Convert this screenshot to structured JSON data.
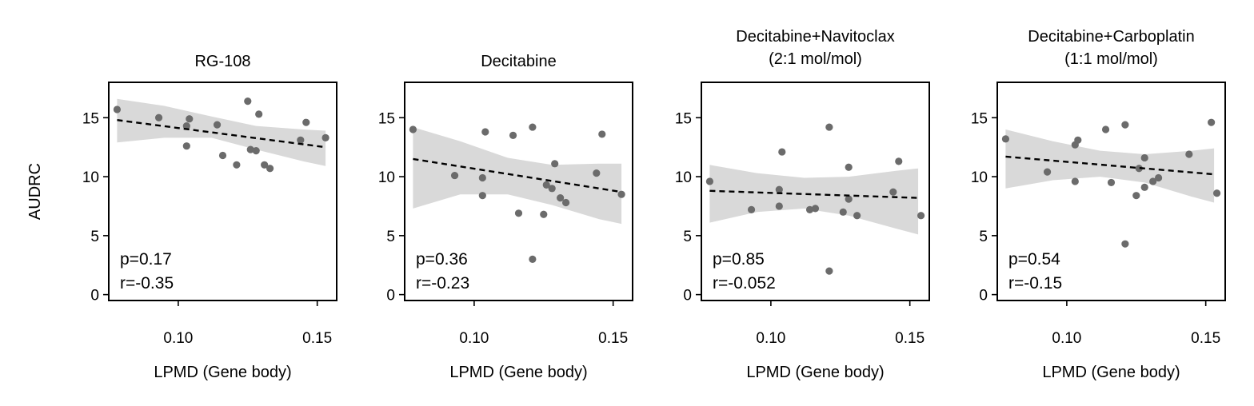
{
  "chart_data": [
    {
      "type": "scatter",
      "title": "RG-108",
      "xlabel": "LPMD (Gene body)",
      "ylabel": "AUDRC",
      "xlim": [
        0.075,
        0.157
      ],
      "ylim": [
        -0.5,
        18
      ],
      "xticks": [
        0.1,
        0.15
      ],
      "xtick_labels": [
        "0.10",
        "0.15"
      ],
      "yticks": [
        0,
        5,
        10,
        15
      ],
      "ytick_labels": [
        "0",
        "5",
        "10",
        "15"
      ],
      "points": [
        {
          "x": 0.078,
          "y": 15.7
        },
        {
          "x": 0.093,
          "y": 15.0
        },
        {
          "x": 0.103,
          "y": 14.3
        },
        {
          "x": 0.104,
          "y": 14.9
        },
        {
          "x": 0.103,
          "y": 12.6
        },
        {
          "x": 0.114,
          "y": 14.4
        },
        {
          "x": 0.116,
          "y": 11.8
        },
        {
          "x": 0.121,
          "y": 11.0
        },
        {
          "x": 0.125,
          "y": 16.4
        },
        {
          "x": 0.126,
          "y": 12.3
        },
        {
          "x": 0.128,
          "y": 12.2
        },
        {
          "x": 0.129,
          "y": 15.3
        },
        {
          "x": 0.131,
          "y": 11.0
        },
        {
          "x": 0.133,
          "y": 10.7
        },
        {
          "x": 0.144,
          "y": 13.1
        },
        {
          "x": 0.146,
          "y": 14.6
        },
        {
          "x": 0.153,
          "y": 13.3
        }
      ],
      "fit": {
        "x": [
          0.078,
          0.153
        ],
        "y": [
          14.8,
          12.5
        ]
      },
      "ci_band": {
        "x": [
          0.078,
          0.095,
          0.112,
          0.128,
          0.145,
          0.153
        ],
        "lower": [
          12.9,
          13.3,
          13.3,
          12.3,
          11.3,
          10.9
        ],
        "upper": [
          16.6,
          16.0,
          15.1,
          14.3,
          14.0,
          13.9
        ]
      },
      "annotation": [
        "p=0.17",
        "r=-0.35"
      ]
    },
    {
      "type": "scatter",
      "title": "Decitabine",
      "xlabel": "LPMD (Gene body)",
      "ylabel": "",
      "xlim": [
        0.075,
        0.157
      ],
      "ylim": [
        -0.5,
        18
      ],
      "xticks": [
        0.1,
        0.15
      ],
      "xtick_labels": [
        "0.10",
        "0.15"
      ],
      "yticks": [
        0,
        5,
        10,
        15
      ],
      "ytick_labels": [
        "0",
        "5",
        "10",
        "15"
      ],
      "points": [
        {
          "x": 0.078,
          "y": 14.0
        },
        {
          "x": 0.093,
          "y": 10.1
        },
        {
          "x": 0.104,
          "y": 13.8
        },
        {
          "x": 0.103,
          "y": 9.9
        },
        {
          "x": 0.103,
          "y": 8.4
        },
        {
          "x": 0.114,
          "y": 13.5
        },
        {
          "x": 0.116,
          "y": 6.9
        },
        {
          "x": 0.121,
          "y": 14.2
        },
        {
          "x": 0.121,
          "y": 3.0
        },
        {
          "x": 0.125,
          "y": 6.8
        },
        {
          "x": 0.126,
          "y": 9.3
        },
        {
          "x": 0.128,
          "y": 9.0
        },
        {
          "x": 0.129,
          "y": 11.1
        },
        {
          "x": 0.131,
          "y": 8.2
        },
        {
          "x": 0.133,
          "y": 7.8
        },
        {
          "x": 0.144,
          "y": 10.3
        },
        {
          "x": 0.146,
          "y": 13.6
        },
        {
          "x": 0.153,
          "y": 8.5
        }
      ],
      "fit": {
        "x": [
          0.078,
          0.153
        ],
        "y": [
          11.5,
          8.7
        ]
      },
      "ci_band": {
        "x": [
          0.078,
          0.095,
          0.112,
          0.128,
          0.145,
          0.153
        ],
        "lower": [
          7.3,
          8.5,
          8.5,
          7.6,
          6.4,
          6.0
        ],
        "upper": [
          14.2,
          13.0,
          11.6,
          11.0,
          11.1,
          11.1
        ]
      },
      "annotation": [
        "p=0.36",
        "r=-0.23"
      ]
    },
    {
      "type": "scatter",
      "title": "Decitabine+Navitoclax\n(2:1 mol/mol)",
      "title_lines": [
        "Decitabine+Navitoclax",
        "(2:1 mol/mol)"
      ],
      "xlabel": "LPMD (Gene body)",
      "ylabel": "",
      "xlim": [
        0.075,
        0.157
      ],
      "ylim": [
        -0.5,
        18
      ],
      "xticks": [
        0.1,
        0.15
      ],
      "xtick_labels": [
        "0.10",
        "0.15"
      ],
      "yticks": [
        0,
        5,
        10,
        15
      ],
      "ytick_labels": [
        "0",
        "5",
        "10",
        "15"
      ],
      "points": [
        {
          "x": 0.078,
          "y": 9.6
        },
        {
          "x": 0.093,
          "y": 7.2
        },
        {
          "x": 0.104,
          "y": 12.1
        },
        {
          "x": 0.103,
          "y": 8.9
        },
        {
          "x": 0.103,
          "y": 7.5
        },
        {
          "x": 0.114,
          "y": 7.2
        },
        {
          "x": 0.116,
          "y": 7.3
        },
        {
          "x": 0.121,
          "y": 14.2
        },
        {
          "x": 0.121,
          "y": 2.0
        },
        {
          "x": 0.126,
          "y": 7.0
        },
        {
          "x": 0.128,
          "y": 8.1
        },
        {
          "x": 0.128,
          "y": 10.8
        },
        {
          "x": 0.131,
          "y": 6.7
        },
        {
          "x": 0.144,
          "y": 8.7
        },
        {
          "x": 0.146,
          "y": 11.3
        },
        {
          "x": 0.154,
          "y": 6.7
        }
      ],
      "fit": {
        "x": [
          0.078,
          0.153
        ],
        "y": [
          8.8,
          8.2
        ]
      },
      "ci_band": {
        "x": [
          0.078,
          0.095,
          0.112,
          0.128,
          0.145,
          0.153
        ],
        "lower": [
          6.1,
          7.0,
          7.3,
          6.7,
          5.6,
          5.1
        ],
        "upper": [
          11.0,
          10.3,
          9.9,
          10.0,
          10.5,
          10.7
        ]
      },
      "annotation": [
        "p=0.85",
        "r=-0.052"
      ]
    },
    {
      "type": "scatter",
      "title": "Decitabine+Carboplatin\n(1:1 mol/mol)",
      "title_lines": [
        "Decitabine+Carboplatin",
        "(1:1 mol/mol)"
      ],
      "xlabel": "LPMD (Gene body)",
      "ylabel": "",
      "xlim": [
        0.075,
        0.157
      ],
      "ylim": [
        -0.5,
        18
      ],
      "xticks": [
        0.1,
        0.15
      ],
      "xtick_labels": [
        "0.10",
        "0.15"
      ],
      "yticks": [
        0,
        5,
        10,
        15
      ],
      "ytick_labels": [
        "0",
        "5",
        "10",
        "15"
      ],
      "points": [
        {
          "x": 0.078,
          "y": 13.2
        },
        {
          "x": 0.093,
          "y": 10.4
        },
        {
          "x": 0.103,
          "y": 12.7
        },
        {
          "x": 0.104,
          "y": 13.1
        },
        {
          "x": 0.103,
          "y": 9.6
        },
        {
          "x": 0.114,
          "y": 14.0
        },
        {
          "x": 0.116,
          "y": 9.5
        },
        {
          "x": 0.121,
          "y": 14.4
        },
        {
          "x": 0.121,
          "y": 4.3
        },
        {
          "x": 0.125,
          "y": 8.4
        },
        {
          "x": 0.126,
          "y": 10.7
        },
        {
          "x": 0.128,
          "y": 9.1
        },
        {
          "x": 0.128,
          "y": 11.6
        },
        {
          "x": 0.131,
          "y": 9.6
        },
        {
          "x": 0.133,
          "y": 9.9
        },
        {
          "x": 0.144,
          "y": 11.9
        },
        {
          "x": 0.152,
          "y": 14.6
        },
        {
          "x": 0.154,
          "y": 8.6
        }
      ],
      "fit": {
        "x": [
          0.078,
          0.153
        ],
        "y": [
          11.7,
          10.2
        ]
      },
      "ci_band": {
        "x": [
          0.078,
          0.095,
          0.112,
          0.128,
          0.145,
          0.153
        ],
        "lower": [
          9.0,
          9.7,
          10.0,
          9.5,
          8.3,
          7.8
        ],
        "upper": [
          14.0,
          13.0,
          12.2,
          11.9,
          12.2,
          12.4
        ]
      },
      "annotation": [
        "p=0.54",
        "r=-0.15"
      ]
    }
  ]
}
